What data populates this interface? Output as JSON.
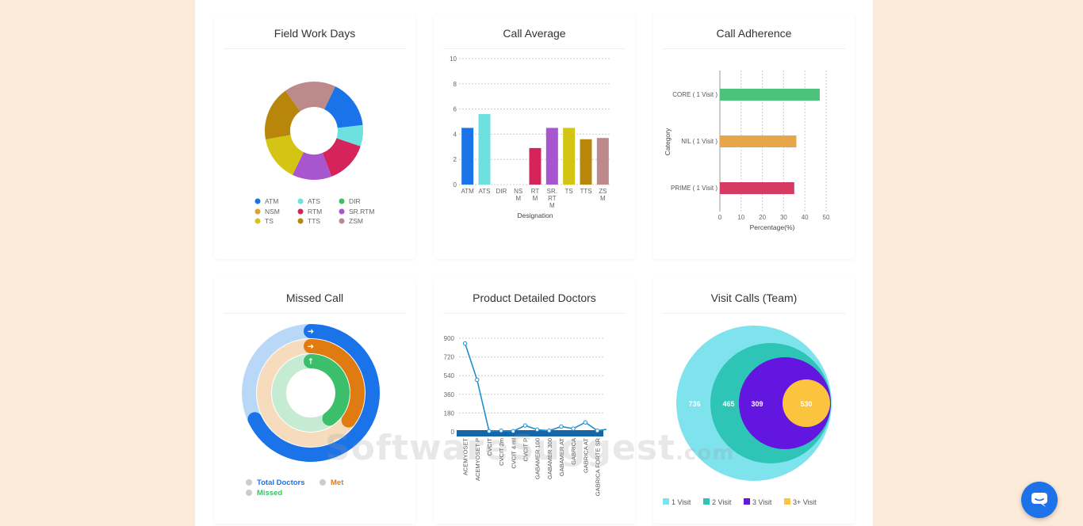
{
  "cards": {
    "field_work_days": "Field Work Days",
    "call_average": "Call Average",
    "call_adherence": "Call Adherence",
    "missed_call": "Missed Call",
    "product_detailed": "Product Detailed Doctors",
    "visit_calls": "Visit Calls (Team)"
  },
  "watermark": {
    "main": "SoftwareSuggest",
    "suffix": ".com"
  },
  "chart_data": [
    {
      "id": "field_work_days",
      "type": "pie",
      "title": "Field Work Days",
      "legend": [
        "ATM",
        "ATS",
        "DIR",
        "NSM",
        "RTM",
        "SR.RTM",
        "TS",
        "TTS",
        "ZSM"
      ],
      "colors": [
        "#1a73e8",
        "#6ee0e0",
        "#3cbf6a",
        "#e0a030",
        "#d4245a",
        "#a855d0",
        "#d4c414",
        "#b8860b",
        "#bc8a8a"
      ],
      "values": [
        16,
        7,
        0,
        0,
        14,
        13,
        15,
        18,
        17
      ]
    },
    {
      "id": "call_average",
      "type": "bar",
      "title": "Call Average",
      "xlabel": "Designation",
      "ylabel": "",
      "ylim": [
        0,
        10
      ],
      "yticks": [
        "0",
        "2",
        "4",
        "6",
        "8",
        "10"
      ],
      "categories": [
        "ATM",
        "ATS",
        "DIR",
        "NSM",
        "RTM",
        "SR.RTM",
        "TS",
        "TTS",
        "ZSM"
      ],
      "category_lines": [
        [
          "ATM"
        ],
        [
          "ATS"
        ],
        [
          "DIR"
        ],
        [
          "NS",
          "M"
        ],
        [
          "RT",
          "M"
        ],
        [
          "SR.",
          "RT",
          "M"
        ],
        [
          "TS"
        ],
        [
          "TTS"
        ],
        [
          "ZS",
          "M"
        ]
      ],
      "values": [
        4.5,
        5.6,
        0,
        0,
        2.9,
        4.5,
        4.5,
        3.6,
        3.7
      ],
      "colors": [
        "#1a73e8",
        "#6ee0e0",
        "#3cbf6a",
        "#e0a030",
        "#d4245a",
        "#a855d0",
        "#d4c414",
        "#b8860b",
        "#bc8a8a"
      ]
    },
    {
      "id": "call_adherence",
      "type": "bar",
      "orientation": "horizontal",
      "title": "Call Adherence",
      "xlabel": "Percentage(%)",
      "ylabel": "Category",
      "xlim": [
        0,
        50
      ],
      "xticks": [
        "0",
        "10",
        "20",
        "30",
        "40",
        "50"
      ],
      "categories": [
        "CORE ( 1 Visit )",
        "NIL ( 1 Visit )",
        "PRIME ( 1 Visit )"
      ],
      "values": [
        47,
        36,
        35
      ],
      "colors": [
        "#4cc27a",
        "#e8a64a",
        "#d63a62"
      ]
    },
    {
      "id": "missed_call",
      "type": "radial_bar",
      "title": "Missed Call",
      "series": [
        {
          "name": "Total Doctors",
          "value": 68,
          "color": "#1a73e8",
          "track": "#b9d8f7"
        },
        {
          "name": "Met",
          "value": 35,
          "color": "#e07b12",
          "track": "#f6dcbd"
        },
        {
          "name": "Missed",
          "value": 40,
          "color": "#3cbf6a",
          "track": "#c5ebd3"
        }
      ]
    },
    {
      "id": "product_detailed",
      "type": "line",
      "title": "Product Detailed Doctors",
      "ylim": [
        0,
        900
      ],
      "yticks": [
        "0",
        "180",
        "360",
        "540",
        "720",
        "900"
      ],
      "categories": [
        "ACEMYOSET",
        "ACEMYOSET P",
        "CVCIT",
        "CVCIT 2m",
        "CVCIT 4 ml",
        "CVCIT P",
        "GABAMER 100",
        "GABAMER 300",
        "GABAMER AT",
        "GABRICA",
        "GABRICA AT",
        "GABRICA FORTE SR"
      ],
      "values": [
        850,
        500,
        5,
        10,
        5,
        60,
        20,
        10,
        50,
        30,
        90,
        10
      ]
    },
    {
      "id": "visit_calls",
      "type": "bubble",
      "title": "Visit Calls (Team)",
      "labels": [
        "1 Visit",
        "2 Visit",
        "3 Visit",
        "3+ Visit"
      ],
      "values": [
        "736",
        "465",
        "309",
        "530"
      ],
      "colors": [
        "#7ee3ec",
        "#2ec4b6",
        "#6216e0",
        "#fcc43e"
      ]
    }
  ]
}
